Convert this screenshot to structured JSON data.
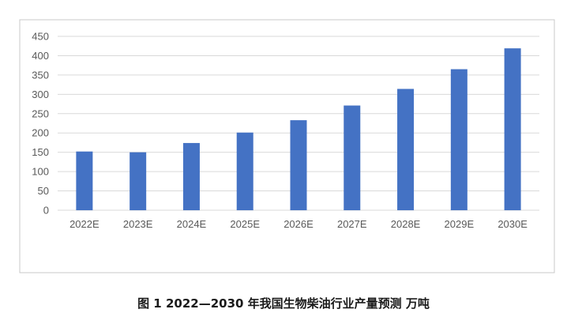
{
  "chart_data": {
    "type": "bar",
    "categories": [
      "2022E",
      "2023E",
      "2024E",
      "2025E",
      "2026E",
      "2027E",
      "2028E",
      "2029E",
      "2030E"
    ],
    "values": [
      152,
      150,
      174,
      201,
      233,
      271,
      314,
      365,
      419
    ],
    "ylim": [
      0,
      450
    ],
    "yticks": [
      0,
      50,
      100,
      150,
      200,
      250,
      300,
      350,
      400,
      450
    ],
    "grid": true,
    "bar_color": "#4472C4",
    "caption": "图 1 2022—2030 年我国生物柴油行业产量预测 万吨"
  }
}
